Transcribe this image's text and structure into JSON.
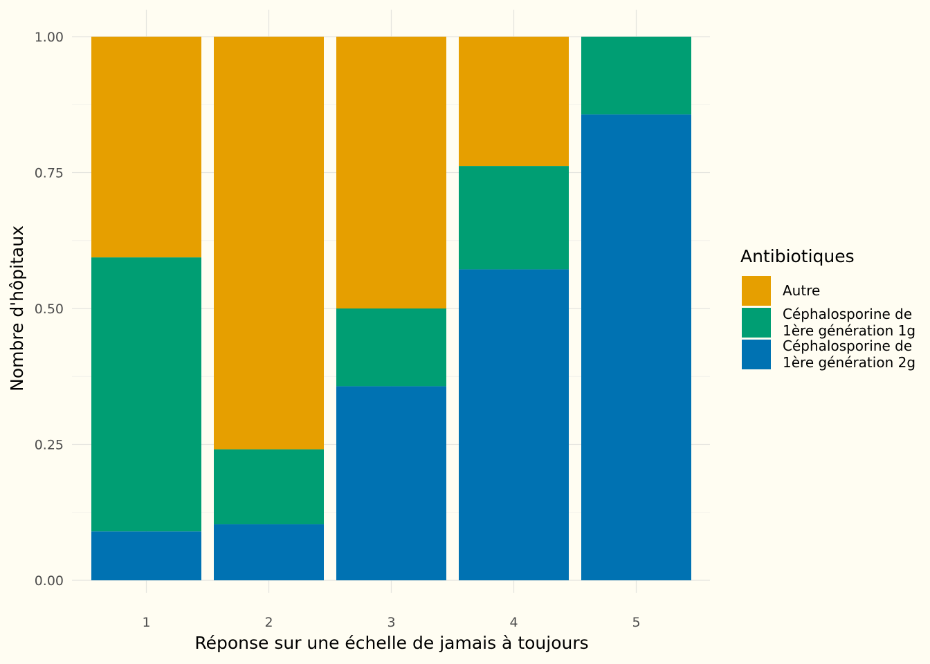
{
  "chart_data": {
    "type": "bar",
    "stacked": true,
    "position": "fill",
    "categories": [
      "1",
      "2",
      "3",
      "4",
      "5"
    ],
    "series": [
      {
        "name": "Autre",
        "color": "#E69F00",
        "values": [
          0.406,
          0.759,
          0.5,
          0.238,
          0.0
        ]
      },
      {
        "name": "Céphalosporine de 1ère génération 1g",
        "color": "#009E73",
        "values": [
          0.504,
          0.138,
          0.143,
          0.19,
          0.143
        ]
      },
      {
        "name": "Céphalosporine de 1ère génération 2g",
        "color": "#0072B2",
        "values": [
          0.09,
          0.103,
          0.357,
          0.572,
          0.857
        ]
      }
    ],
    "xlabel": "Réponse sur une échelle de jamais à toujours",
    "ylabel": "Nombre d'hôpitaux",
    "ylim": [
      0,
      1
    ],
    "yticks": [
      "0.00",
      "0.25",
      "0.50",
      "0.75",
      "1.00"
    ],
    "grid": true,
    "legend": {
      "title": "Antibiotiques",
      "placement": "right",
      "entries": [
        {
          "lines": [
            "Autre"
          ],
          "color": "#E69F00"
        },
        {
          "lines": [
            "Céphalosporine de",
            "1ère génération 1g"
          ],
          "color": "#009E73"
        },
        {
          "lines": [
            "Céphalosporine de",
            "1ère génération 2g"
          ],
          "color": "#0072B2"
        }
      ]
    }
  }
}
